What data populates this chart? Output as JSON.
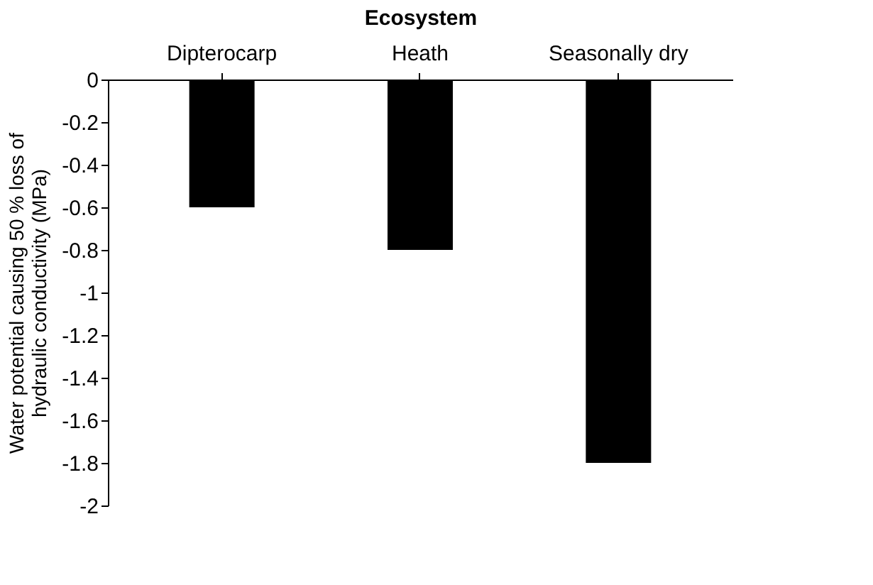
{
  "chart_data": {
    "type": "bar",
    "xlabel": "Ecosystem",
    "ylabel": "Water potential causing 50 % loss of\nhydraulic conductivity (MPa)",
    "categories": [
      "Dipterocarp",
      "Heath",
      "Seasonally dry"
    ],
    "values": [
      -0.6,
      -0.8,
      -1.8
    ],
    "color": "#000000",
    "ylim": [
      -2,
      0
    ],
    "yticks": [
      0,
      -0.2,
      -0.4,
      -0.6,
      -0.8,
      -1,
      -1.2,
      -1.4,
      -1.6,
      -1.8,
      -2
    ],
    "grid": false
  }
}
